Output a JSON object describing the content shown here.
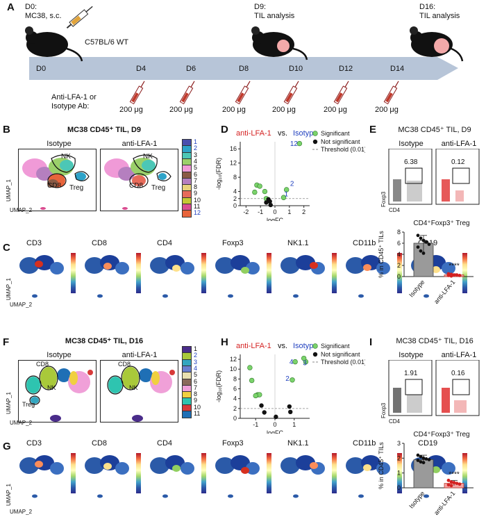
{
  "panel_letters": {
    "A": "A",
    "B": "B",
    "C": "C",
    "D": "D",
    "E": "E",
    "F": "F",
    "G": "G",
    "H": "H",
    "I": "I"
  },
  "timeline": {
    "d0_label": "D0:",
    "d0_sub": "MC38, s.c.",
    "d9_label": "D9:",
    "d9_sub": "TIL analysis",
    "d16_label": "D16:",
    "d16_sub": "TIL analysis",
    "strain": "C57BL/6 WT",
    "days": [
      "D0",
      "D4",
      "D6",
      "D8",
      "D10",
      "D12",
      "D14"
    ],
    "treatment_line1": "Anti-LFA-1 or",
    "treatment_line2": "Isotype Ab:",
    "doses": [
      "200 μg",
      "200 μg",
      "200 μg",
      "200 μg",
      "200 μg",
      "200 μg"
    ]
  },
  "panelB": {
    "title": "MC38 CD45⁺ TIL, D9",
    "left": "Isotype",
    "right": "anti-LFA-1",
    "nk": "NK",
    "cd8": "CD8",
    "treg": "Treg",
    "umap1": "UMAP_1",
    "umap2": "UMAP_2",
    "clusters": [
      "1",
      "2",
      "3",
      "4",
      "5",
      "6",
      "7",
      "8",
      "9",
      "10",
      "11",
      "12"
    ],
    "cluster_colors": [
      "#4a4fae",
      "#2ea3c9",
      "#4cc7b6",
      "#9bd06a",
      "#f09ad7",
      "#8a5a45",
      "#b57fbf",
      "#e8d27b",
      "#e76b5a",
      "#c4c833",
      "#d94d90",
      "#e8643b"
    ],
    "blue_clusters": [
      "1",
      "2",
      "12"
    ]
  },
  "panelC": {
    "markers": [
      "CD3",
      "CD8",
      "CD4",
      "Foxp3",
      "NK1.1",
      "CD11b",
      "CD19"
    ],
    "umap1": "UMAP_1",
    "umap2": "UMAP_2"
  },
  "panelD": {
    "anti": "anti-LFA-1",
    "vs": "vs.",
    "iso": "Isotype",
    "legend_sig": "Significant",
    "legend_ns": "Not significant",
    "legend_thr": "Threshold (0.01)",
    "ylabel": "-log₁₀(FDR)",
    "xlabel": "logFC",
    "yticks": [
      "0",
      "2",
      "4",
      "8",
      "12",
      "16"
    ],
    "xticks": [
      "-2",
      "-1",
      "0",
      "1",
      "2"
    ],
    "point_labels": [
      "12",
      "2",
      "1"
    ]
  },
  "panelE": {
    "title": "MC38 CD45⁺ TIL, D9",
    "left": "Isotype",
    "right": "anti-LFA-1",
    "val_left": "6.38",
    "val_right": "0.12",
    "ylab": "Foxp3",
    "xlab": "CD4",
    "bar_title": "CD4⁺Foxp3⁺ Treg",
    "bar_ylabel": "% in CD45⁺ TILs",
    "yticks": [
      "0",
      "2",
      "4",
      "6",
      "8"
    ],
    "cats": [
      "Isotype",
      "anti-LFA-1"
    ],
    "sig": "****"
  },
  "panelF": {
    "title": "MC38 CD45⁺ TIL, D16",
    "left": "Isotype",
    "right": "anti-LFA-1",
    "nk": "NK",
    "cd8": "CD8",
    "treg": "Treg",
    "umap1": "UMAP_1",
    "umap2": "UMAP_2",
    "clusters": [
      "1",
      "2",
      "3",
      "4",
      "5",
      "6",
      "7",
      "8",
      "9",
      "10",
      "11"
    ],
    "cluster_colors": [
      "#4a2c8a",
      "#a9c93a",
      "#33a6c0",
      "#6a7fd0",
      "#e8e0b0",
      "#8a6a5a",
      "#f0a0d8",
      "#f0d040",
      "#2ec4b0",
      "#d83a3a",
      "#1f6fb5"
    ],
    "blue_clusters": [
      "2",
      "3",
      "4"
    ]
  },
  "panelG": {
    "markers": [
      "CD3",
      "CD8",
      "CD4",
      "Foxp3",
      "NK1.1",
      "CD11b",
      "CD19"
    ],
    "umap1": "UMAP_1",
    "umap2": "UMAP_2"
  },
  "panelH": {
    "anti": "anti-LFA-1",
    "vs": "vs.",
    "iso": "Isotype",
    "legend_sig": "Significant",
    "legend_ns": "Not significant",
    "legend_thr": "Threshold (0.01)",
    "ylabel": "-log₁₀(FDR)",
    "xlabel": "logFC",
    "yticks": [
      "0",
      "2",
      "4",
      "6",
      "8",
      "10",
      "12"
    ],
    "xticks": [
      "-1",
      "0",
      "1"
    ],
    "point_labels": [
      "4",
      "3",
      "2"
    ]
  },
  "panelI": {
    "title": "MC38 CD45⁺ TIL, D16",
    "left": "Isotype",
    "right": "anti-LFA-1",
    "val_left": "1.91",
    "val_right": "0.16",
    "ylab": "Foxp3",
    "xlab": "CD4",
    "bar_title": "CD4⁺Foxp3⁺ Treg",
    "bar_ylabel": "% in CD45⁺ TILs",
    "yticks": [
      "0",
      "1",
      "2",
      "3"
    ],
    "cats": [
      "Isotype",
      "anti-LFA-1"
    ],
    "sig": "****"
  },
  "chart_data": [
    {
      "type": "scatter",
      "panel": "D",
      "xlabel": "logFC",
      "ylabel": "-log10(FDR)",
      "xlim": [
        -2.4,
        2.4
      ],
      "ylim": [
        0,
        18
      ],
      "threshold": 2,
      "series": [
        {
          "name": "Significant",
          "x": [
            1.7,
            0.8,
            0.6,
            -1.25,
            -1.05,
            -1.4,
            -0.7,
            -0.6
          ],
          "y": [
            17.5,
            4.5,
            2.3,
            5.8,
            5.5,
            3.8,
            4.0,
            2.0
          ]
        },
        {
          "name": "Not significant",
          "x": [
            -0.45,
            -0.35,
            -0.3,
            -0.6
          ],
          "y": [
            1.8,
            1.2,
            0.2,
            0.9
          ]
        }
      ]
    },
    {
      "type": "bar",
      "panel": "E",
      "title": "CD4⁺Foxp3⁺ Treg",
      "ylabel": "% in CD45⁺ TILs",
      "categories": [
        "Isotype",
        "anti-LFA-1"
      ],
      "values": [
        6.0,
        0.3
      ],
      "ylim": [
        0,
        8
      ],
      "points": [
        [
          7.4,
          6.9,
          6.5,
          6.2,
          5.8,
          5.3,
          4.6,
          4.2
        ],
        [
          0.5,
          0.4,
          0.3,
          0.3,
          0.2,
          0.2,
          0.1
        ]
      ]
    },
    {
      "type": "scatter",
      "panel": "H",
      "xlabel": "logFC",
      "ylabel": "-log10(FDR)",
      "xlim": [
        -1.8,
        1.8
      ],
      "ylim": [
        0,
        13
      ],
      "threshold": 2,
      "series": [
        {
          "name": "Significant",
          "x": [
            1.6,
            1.5,
            1.05,
            0.9,
            -1.3,
            -1.2,
            -0.9,
            -0.8,
            -1.0
          ],
          "y": [
            11.5,
            12.2,
            11.5,
            7.8,
            10.3,
            7.7,
            4.8,
            4.8,
            4.6
          ]
        },
        {
          "name": "Not significant",
          "x": [
            -0.7,
            -0.55,
            0.05,
            0.75,
            0.8
          ],
          "y": [
            2.6,
            1.2,
            0.3,
            2.4,
            1.3
          ]
        }
      ]
    },
    {
      "type": "bar",
      "panel": "I",
      "title": "CD4⁺Foxp3⁺ Treg",
      "ylabel": "% in CD45⁺ TILs",
      "categories": [
        "Isotype",
        "anti-LFA-1"
      ],
      "values": [
        1.9,
        0.3
      ],
      "ylim": [
        0,
        3
      ],
      "points": [
        [
          2.2,
          2.1,
          2.0,
          1.95,
          1.9,
          1.85,
          1.75,
          1.7
        ],
        [
          0.5,
          0.4,
          0.35,
          0.3,
          0.25,
          0.2,
          0.15
        ]
      ]
    }
  ]
}
